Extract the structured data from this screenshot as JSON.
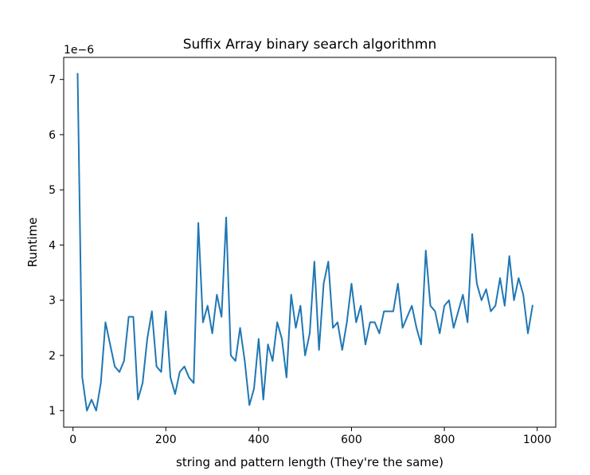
{
  "chart_data": {
    "type": "line",
    "title": "Suffix Array binary search algorithmn",
    "xlabel": "string and pattern length (They're the same)",
    "ylabel": "Runtime",
    "y_offset_label": "1e−6",
    "y_scale_multiplier": 1e-06,
    "xlim": [
      -20,
      1040
    ],
    "ylim": [
      0.7,
      7.4
    ],
    "xticks": [
      0,
      200,
      400,
      600,
      800,
      1000
    ],
    "xtick_labels": [
      "0",
      "200",
      "400",
      "600",
      "800",
      "1000"
    ],
    "yticks": [
      1,
      2,
      3,
      4,
      5,
      6,
      7
    ],
    "ytick_labels": [
      "1",
      "2",
      "3",
      "4",
      "5",
      "6",
      "7"
    ],
    "grid": false,
    "line_color": "#1f77b4",
    "x": [
      10,
      20,
      30,
      40,
      50,
      60,
      70,
      80,
      90,
      100,
      110,
      120,
      130,
      140,
      150,
      160,
      170,
      180,
      190,
      200,
      210,
      220,
      230,
      240,
      250,
      260,
      270,
      280,
      290,
      300,
      310,
      320,
      330,
      340,
      350,
      360,
      370,
      380,
      390,
      400,
      410,
      420,
      430,
      440,
      450,
      460,
      470,
      480,
      490,
      500,
      510,
      520,
      530,
      540,
      550,
      560,
      570,
      580,
      590,
      600,
      610,
      620,
      630,
      640,
      650,
      660,
      670,
      680,
      690,
      700,
      710,
      720,
      730,
      740,
      750,
      760,
      770,
      780,
      790,
      800,
      810,
      820,
      830,
      840,
      850,
      860,
      870,
      880,
      890,
      900,
      910,
      920,
      930,
      940,
      950,
      960,
      970,
      980,
      990
    ],
    "series": [
      {
        "values": [
          7.1,
          1.6,
          1.0,
          1.2,
          1.0,
          1.5,
          2.6,
          2.2,
          1.8,
          1.7,
          1.9,
          2.7,
          2.7,
          1.2,
          1.5,
          2.3,
          2.8,
          1.8,
          1.7,
          2.8,
          1.6,
          1.3,
          1.7,
          1.8,
          1.6,
          1.5,
          4.4,
          2.6,
          2.9,
          2.4,
          3.1,
          2.7,
          4.5,
          2.0,
          1.9,
          2.5,
          1.9,
          1.1,
          1.4,
          2.3,
          1.2,
          2.2,
          1.9,
          2.6,
          2.3,
          1.6,
          3.1,
          2.5,
          2.9,
          2.0,
          2.4,
          3.7,
          2.1,
          3.3,
          3.7,
          2.5,
          2.6,
          2.1,
          2.6,
          3.3,
          2.6,
          2.9,
          2.2,
          2.6,
          2.6,
          2.4,
          2.8,
          2.8,
          2.8,
          3.3,
          2.5,
          2.7,
          2.9,
          2.5,
          2.2,
          3.9,
          2.9,
          2.8,
          2.4,
          2.9,
          3.0,
          2.5,
          2.8,
          3.1,
          2.6,
          4.2,
          3.3,
          3.0,
          3.2,
          2.8,
          2.9,
          3.4,
          2.9,
          3.8,
          3.0,
          3.4,
          3.1,
          2.4,
          2.9
        ]
      }
    ]
  }
}
